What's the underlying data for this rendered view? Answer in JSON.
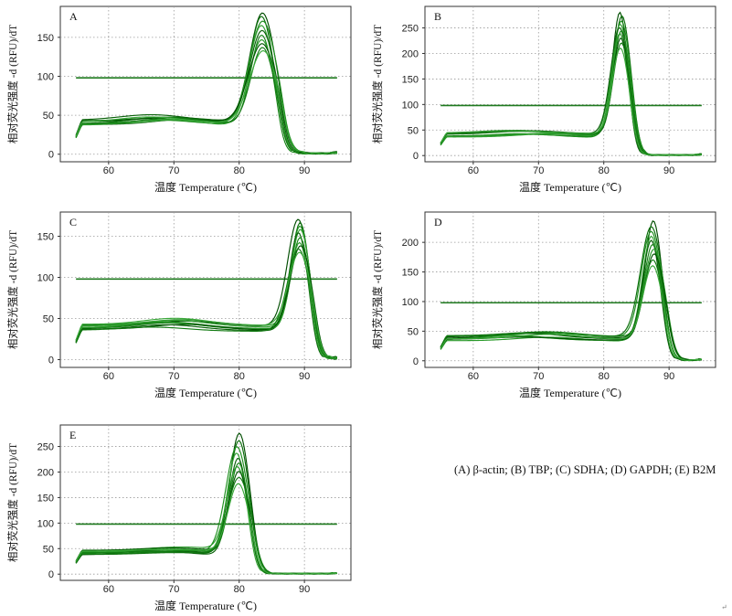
{
  "caption": "(A) β-actin; (B) TBP; (C) SDHA; (D) GAPDH; (E) B2M",
  "corner_mark": "↵",
  "colors": {
    "curves": [
      "#004d00",
      "#0a6e0a",
      "#1f8f1f",
      "#33a133",
      "#086008",
      "#158215",
      "#2a9a2a",
      "#005500",
      "#127a12",
      "#3aa83a"
    ],
    "threshold": "#1f7a1f",
    "grid": "#9a9a9a",
    "frame": "#333333"
  },
  "chart_data": [
    {
      "type": "line",
      "panel_label": "A",
      "xlabel": "温度 Temperature (℃)",
      "ylabel": "相对荧光强度 -d (RFU)/dT",
      "xlim": [
        54,
        96
      ],
      "ylim": [
        -5,
        185
      ],
      "xticks": [
        60,
        70,
        80,
        90
      ],
      "yticks": [
        0,
        50,
        100,
        150
      ],
      "threshold": 98,
      "grid": true,
      "curve_params": {
        "peak_x": 83.5,
        "peak_sigma": 1.6,
        "plateau": 40,
        "peak_heights": [
          182,
          178,
          172,
          166,
          160,
          154,
          148,
          143,
          138,
          134
        ]
      },
      "representative_curve": {
        "x": [
          55,
          56,
          58,
          60,
          62,
          64,
          66,
          68,
          70,
          72,
          74,
          76,
          78,
          80,
          81,
          82,
          83,
          83.5,
          84,
          85,
          86,
          87,
          88,
          90,
          92,
          94,
          95
        ],
        "y": [
          20,
          30,
          30,
          34,
          37,
          40,
          42,
          43,
          42,
          41,
          40,
          39,
          38,
          44,
          62,
          110,
          155,
          165,
          155,
          100,
          45,
          15,
          4,
          1,
          1,
          0,
          2
        ]
      }
    },
    {
      "type": "line",
      "panel_label": "B",
      "xlabel": "温度 Temperature (℃)",
      "ylabel": "相对荧光强度 -d (RFU)/dT",
      "xlim": [
        54,
        96
      ],
      "ylim": [
        -5,
        285
      ],
      "xticks": [
        60,
        70,
        80,
        90
      ],
      "yticks": [
        0,
        50,
        100,
        150,
        200,
        250
      ],
      "threshold": 98,
      "grid": true,
      "curve_params": {
        "peak_x": 82.6,
        "peak_sigma": 1.1,
        "plateau": 40,
        "peak_heights": [
          282,
          275,
          265,
          258,
          252,
          246,
          240,
          232,
          222,
          212
        ]
      },
      "representative_curve": {
        "x": [
          55,
          56,
          58,
          60,
          62,
          64,
          66,
          68,
          70,
          72,
          74,
          76,
          78,
          80,
          81,
          82,
          82.6,
          83,
          84,
          85,
          86,
          88,
          90,
          92,
          94,
          95
        ],
        "y": [
          15,
          25,
          26,
          30,
          34,
          38,
          41,
          43,
          42,
          41,
          40,
          39,
          39,
          50,
          110,
          225,
          250,
          230,
          110,
          30,
          6,
          2,
          1,
          1,
          0,
          2
        ]
      }
    },
    {
      "type": "line",
      "panel_label": "C",
      "xlabel": "温度 Temperature (℃)",
      "ylabel": "相对荧光强度 -d (RFU)/dT",
      "xlim": [
        54,
        96
      ],
      "ylim": [
        -5,
        175
      ],
      "xticks": [
        60,
        70,
        80,
        90
      ],
      "yticks": [
        0,
        50,
        100,
        150
      ],
      "threshold": 98,
      "grid": true,
      "curve_params": {
        "peak_x": 89.2,
        "peak_sigma": 1.3,
        "plateau": 38,
        "peak_heights": [
          172,
          168,
          164,
          160,
          156,
          150,
          144,
          140,
          136,
          132
        ]
      },
      "representative_curve": {
        "x": [
          55,
          56,
          58,
          60,
          62,
          64,
          66,
          68,
          70,
          72,
          74,
          76,
          78,
          80,
          82,
          84,
          86,
          87,
          88,
          89,
          89.5,
          90,
          91,
          92,
          93,
          94,
          95
        ],
        "y": [
          15,
          22,
          23,
          28,
          33,
          36,
          38,
          40,
          41,
          40,
          39,
          38,
          37,
          36,
          35,
          35,
          40,
          70,
          130,
          160,
          165,
          150,
          90,
          30,
          5,
          1,
          2
        ]
      }
    },
    {
      "type": "line",
      "panel_label": "D",
      "xlabel": "温度 Temperature (℃)",
      "ylabel": "相对荧光强度 -d (RFU)/dT",
      "xlim": [
        54,
        96
      ],
      "ylim": [
        -5,
        245
      ],
      "xticks": [
        60,
        70,
        80,
        90
      ],
      "yticks": [
        0,
        50,
        100,
        150,
        200
      ],
      "threshold": 98,
      "grid": true,
      "curve_params": {
        "peak_x": 87.5,
        "peak_sigma": 1.25,
        "plateau": 38,
        "peak_heights": [
          238,
          228,
          220,
          212,
          205,
          198,
          190,
          182,
          172,
          162
        ]
      },
      "representative_curve": {
        "x": [
          55,
          56,
          58,
          60,
          62,
          64,
          66,
          68,
          70,
          72,
          74,
          76,
          78,
          80,
          82,
          84,
          85,
          86,
          87,
          87.5,
          88,
          89,
          90,
          91,
          92,
          94,
          95
        ],
        "y": [
          15,
          22,
          22,
          27,
          31,
          35,
          38,
          40,
          41,
          40,
          39,
          38,
          37,
          36,
          35,
          40,
          65,
          130,
          185,
          200,
          185,
          110,
          40,
          10,
          3,
          1,
          2
        ]
      }
    },
    {
      "type": "line",
      "panel_label": "E",
      "xlabel": "温度 Temperature (℃)",
      "ylabel": "相对荧光强度 -d (RFU)/dT",
      "xlim": [
        54,
        96
      ],
      "ylim": [
        -5,
        285
      ],
      "xticks": [
        60,
        70,
        80,
        90
      ],
      "yticks": [
        0,
        50,
        100,
        150,
        200,
        250
      ],
      "threshold": 98,
      "grid": true,
      "curve_params": {
        "peak_x": 79.8,
        "peak_sigma": 1.35,
        "plateau": 42,
        "peak_heights": [
          276,
          262,
          250,
          238,
          228,
          218,
          210,
          202,
          190,
          178
        ]
      },
      "representative_curve": {
        "x": [
          55,
          56,
          58,
          60,
          62,
          64,
          66,
          68,
          70,
          72,
          74,
          76,
          77,
          78,
          79,
          79.8,
          80,
          81,
          82,
          83,
          84,
          86,
          88,
          90,
          92,
          94,
          95
        ],
        "y": [
          15,
          20,
          22,
          30,
          38,
          44,
          46,
          46,
          45,
          44,
          44,
          60,
          95,
          160,
          215,
          225,
          220,
          160,
          60,
          15,
          5,
          3,
          2,
          1,
          1,
          0,
          2
        ]
      }
    }
  ]
}
